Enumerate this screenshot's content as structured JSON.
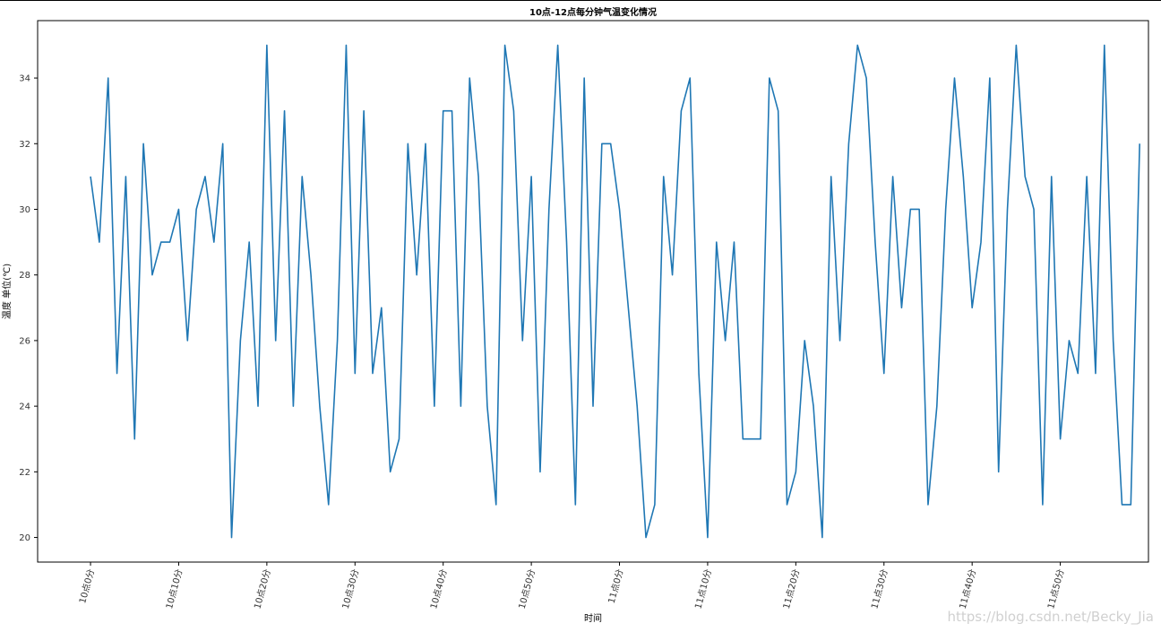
{
  "chart_data": {
    "type": "line",
    "title": "10点-12点每分钟气温变化情况",
    "xlabel": "时间",
    "ylabel": "温度 单位(℃)",
    "ylim": [
      19.25,
      35.75
    ],
    "xlim": [
      -6,
      120
    ],
    "grid": false,
    "color": "#1f77b4",
    "x_tick_positions": [
      0,
      10,
      20,
      30,
      40,
      50,
      60,
      70,
      80,
      90,
      100,
      110
    ],
    "x_tick_labels": [
      "10点0分",
      "10点10分",
      "10点20分",
      "10点30分",
      "10点40分",
      "10点50分",
      "11点0分",
      "11点10分",
      "11点20分",
      "11点30分",
      "11点40分",
      "11点50分"
    ],
    "y_ticks": [
      20,
      22,
      24,
      26,
      28,
      30,
      32,
      34
    ],
    "x": [
      0,
      1,
      2,
      3,
      4,
      5,
      6,
      7,
      8,
      9,
      10,
      11,
      12,
      13,
      14,
      15,
      16,
      17,
      18,
      19,
      20,
      21,
      22,
      23,
      24,
      25,
      26,
      27,
      28,
      29,
      30,
      31,
      32,
      33,
      34,
      35,
      36,
      37,
      38,
      39,
      40,
      41,
      42,
      43,
      44,
      45,
      46,
      47,
      48,
      49,
      50,
      51,
      52,
      53,
      54,
      55,
      56,
      57,
      58,
      59,
      60,
      61,
      62,
      63,
      64,
      65,
      66,
      67,
      68,
      69,
      70,
      71,
      72,
      73,
      74,
      75,
      76,
      77,
      78,
      79,
      80,
      81,
      82,
      83,
      84,
      85,
      86,
      87,
      88,
      89,
      90,
      91,
      92,
      93,
      94,
      95,
      96,
      97,
      98,
      99,
      100,
      101,
      102,
      103,
      104,
      105,
      106,
      107,
      108,
      109,
      110,
      111,
      112,
      113,
      114,
      115,
      116,
      117,
      118,
      119
    ],
    "series": [
      {
        "values": [
          31,
          29,
          34,
          25,
          31,
          23,
          32,
          28,
          29,
          29,
          30,
          26,
          30,
          31,
          29,
          32,
          20,
          26,
          29,
          24,
          35,
          26,
          33,
          24,
          31,
          28,
          24,
          21,
          26,
          35,
          25,
          33,
          25,
          27,
          22,
          23,
          32,
          28,
          32,
          24,
          33,
          33,
          24,
          34,
          31,
          24,
          21,
          35,
          33,
          26,
          31,
          22,
          30,
          35,
          29,
          21,
          34,
          24,
          32,
          32,
          30,
          27,
          24,
          20,
          21,
          31,
          28,
          33,
          34,
          25,
          20,
          29,
          26,
          29,
          23,
          23,
          23,
          34,
          33,
          21,
          22,
          26,
          24,
          20,
          31,
          26,
          32,
          35,
          34,
          29,
          25,
          31,
          27,
          30,
          30,
          21,
          24,
          30,
          34,
          31,
          27,
          29,
          34,
          22,
          30,
          35,
          31,
          30,
          21,
          31,
          23,
          26,
          25,
          31,
          25,
          35,
          26,
          21,
          21,
          32
        ]
      }
    ]
  },
  "watermark": "https://blog.csdn.net/Becky_Jia"
}
